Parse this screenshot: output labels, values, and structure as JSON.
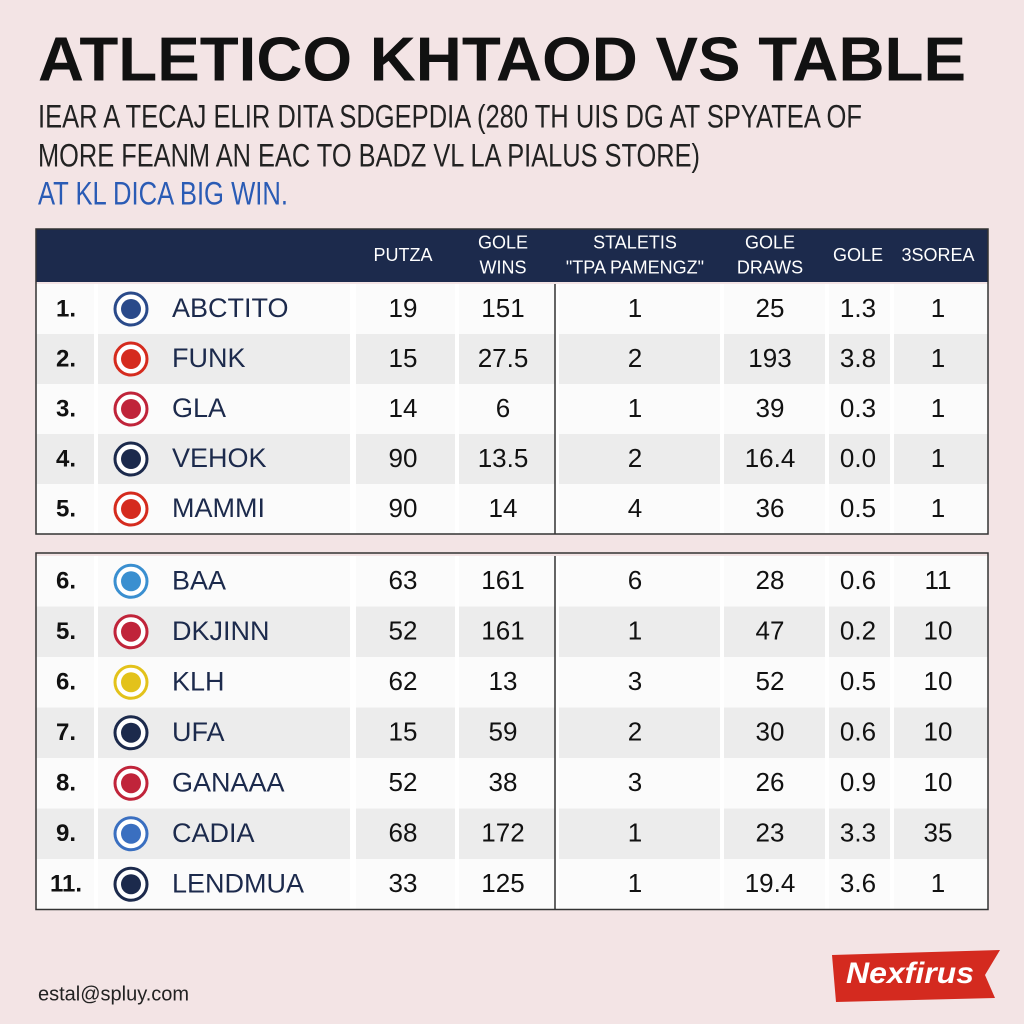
{
  "title": "ATLETICO KHTAOD VS TABLE",
  "subtitle": [
    "IEAR A TECAJ ELIR DITA SDGEPDIA (280 TH UIS DG AT SPYATEA OF",
    "MORE FEANM AN EAC TO BADZ VL LA PIALUS STORE)",
    "AT KL DICA BIG WIN."
  ],
  "table": {
    "columns": [
      [
        "PUTZA"
      ],
      [
        "GOLE",
        "WINS"
      ],
      [
        "STALETIS",
        "\"TPA PAMENGZ\""
      ],
      [
        "GOLE",
        "DRAWS"
      ],
      [
        "GOLE"
      ],
      [
        "3SOREA"
      ]
    ],
    "groups": [
      [
        {
          "rank": "1.",
          "team": "ABCTITO",
          "cells": [
            "19",
            "151",
            "1",
            "25",
            "1.3",
            "1"
          ]
        },
        {
          "rank": "2.",
          "team": "FUNK",
          "cells": [
            "15",
            "27.5",
            "2",
            "193",
            "3.8",
            "1"
          ]
        },
        {
          "rank": "3.",
          "team": "GLA",
          "cells": [
            "14",
            "6",
            "1",
            "39",
            "0.3",
            "1"
          ]
        },
        {
          "rank": "4.",
          "team": "VEHOK",
          "cells": [
            "90",
            "13.5",
            "2",
            "16.4",
            "0.0",
            "1"
          ]
        },
        {
          "rank": "5.",
          "team": "MAMMI",
          "cells": [
            "90",
            "14",
            "4",
            "36",
            "0.5",
            "1"
          ]
        }
      ],
      [
        {
          "rank": "6.",
          "team": "BAA",
          "cells": [
            "63",
            "161",
            "6",
            "28",
            "0.6",
            "11"
          ]
        },
        {
          "rank": "5.",
          "team": "DKJINN",
          "cells": [
            "52",
            "161",
            "1",
            "47",
            "0.2",
            "10"
          ]
        },
        {
          "rank": "6.",
          "team": "KLH",
          "cells": [
            "62",
            "13",
            "3",
            "52",
            "0.5",
            "10"
          ]
        },
        {
          "rank": "7.",
          "team": "UFA",
          "cells": [
            "15",
            "59",
            "2",
            "30",
            "0.6",
            "10"
          ]
        },
        {
          "rank": "8.",
          "team": "GANAAA",
          "cells": [
            "52",
            "38",
            "3",
            "26",
            "0.9",
            "10"
          ]
        },
        {
          "rank": "9.",
          "team": "CADIA",
          "cells": [
            "68",
            "172",
            "1",
            "23",
            "3.3",
            "35"
          ]
        },
        {
          "rank": "11.",
          "team": "LENDMUA",
          "cells": [
            "33",
            "125",
            "1",
            "19.4",
            "3.6",
            "1"
          ]
        }
      ]
    ]
  },
  "footer": {
    "email": "estal@spluy.com",
    "brand": "Nexfirus"
  }
}
